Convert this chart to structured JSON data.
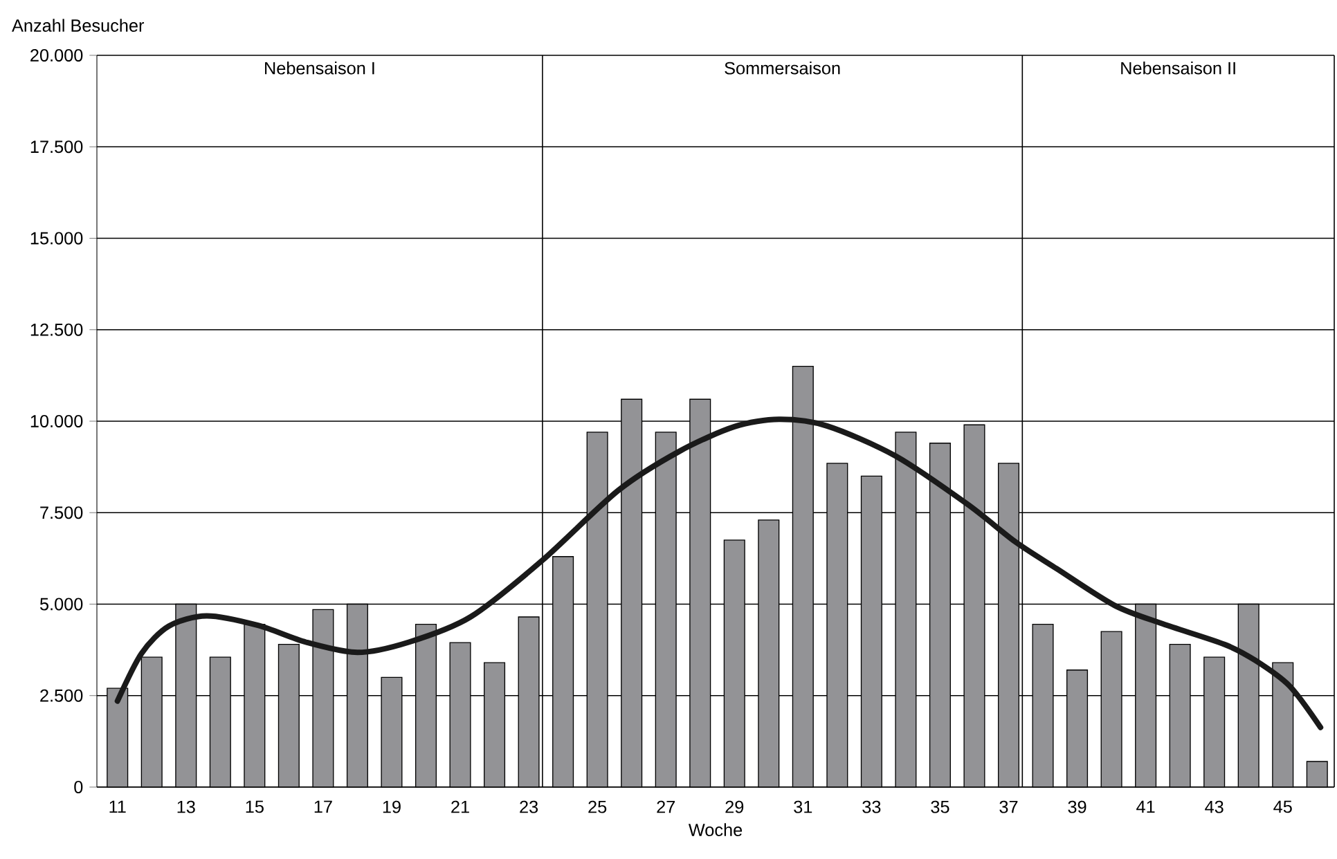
{
  "chart_data": {
    "type": "bar",
    "xlabel": "Woche",
    "ylabel": "Anzahl Besucher",
    "xlim": [
      10.4,
      46.5
    ],
    "xticks": [
      11,
      13,
      15,
      17,
      19,
      21,
      23,
      25,
      27,
      29,
      31,
      33,
      35,
      37,
      39,
      41,
      43,
      45
    ],
    "ylim": [
      0,
      20000
    ],
    "yticks": [
      0,
      {
        "value": 2500,
        "label": "2.500"
      },
      {
        "value": 5000,
        "label": "5.000"
      },
      {
        "value": 7500,
        "label": "7.500"
      },
      {
        "value": 10000,
        "label": "10.000"
      },
      {
        "value": 12500,
        "label": "12.500"
      },
      {
        "value": 15000,
        "label": "15.000"
      },
      {
        "value": 17500,
        "label": "17.500"
      },
      {
        "value": 20000,
        "label": "20.000"
      }
    ],
    "grid": "y",
    "ref_lines": [
      {
        "axis": "x",
        "value": 23.4,
        "color": "#000000"
      },
      {
        "axis": "x",
        "value": 37.4,
        "color": "#000000"
      }
    ],
    "annotations": [
      "Nebensaison I",
      "Sommersaison",
      "Nebensaison II"
    ],
    "series": [
      {
        "color": "#939396",
        "x": [
          11,
          12,
          13,
          14,
          15,
          16,
          17,
          18,
          19,
          20,
          21,
          22,
          23,
          24,
          25,
          26,
          27,
          28,
          29,
          30,
          31,
          32,
          33,
          34,
          35,
          36,
          37,
          38,
          39,
          40,
          41,
          42,
          43,
          44,
          45,
          46
        ],
        "values": [
          2700,
          3550,
          5000,
          3550,
          4450,
          3900,
          4850,
          5000,
          3000,
          4450,
          3950,
          3400,
          4650,
          6300,
          9700,
          10600,
          9700,
          10600,
          6750,
          7300,
          11500,
          8850,
          8500,
          9700,
          9400,
          9900,
          8850,
          4450,
          3200,
          4250,
          5000,
          3900,
          3550,
          5000,
          3400,
          700
        ]
      },
      {
        "type": "line",
        "color": "#1a1a1a",
        "x": [
          11,
          11.7,
          12.5,
          13.6,
          15.1,
          16.5,
          18,
          19.5,
          21.3,
          23.4,
          25.6,
          27.4,
          29,
          30.3,
          31.7,
          33.7,
          35.8,
          37.2,
          38.4,
          40.1,
          41.5,
          43.3,
          44.2,
          45.2,
          46.1
        ],
        "values": [
          2350,
          3650,
          4400,
          4680,
          4420,
          3960,
          3680,
          3960,
          4650,
          6200,
          8100,
          9180,
          9850,
          10050,
          9870,
          9050,
          7730,
          6700,
          5970,
          4960,
          4460,
          3900,
          3460,
          2760,
          1630
        ]
      }
    ]
  }
}
